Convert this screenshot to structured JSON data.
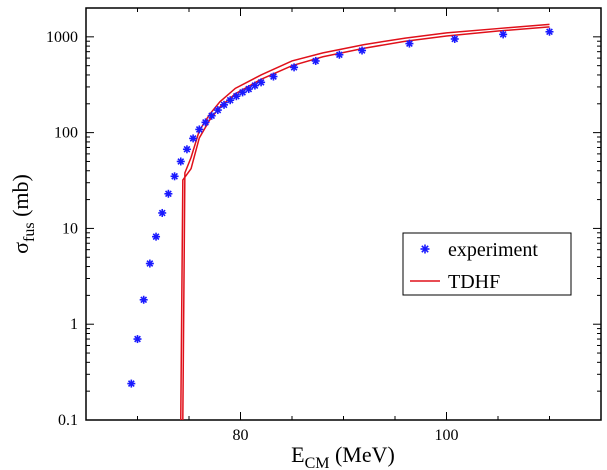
{
  "chart_data": {
    "type": "scatter",
    "title": "",
    "xlabel": {
      "main": "E",
      "sub": "CM",
      "rest": " (MeV)"
    },
    "ylabel": {
      "main": "σ",
      "sub": "fus",
      "rest": " (mb)"
    },
    "xlim": [
      65,
      115
    ],
    "ylim": [
      0.1,
      2000
    ],
    "yscale": "log",
    "x_ticks": [
      {
        "value": 80,
        "label": "80"
      },
      {
        "value": 100,
        "label": "100"
      }
    ],
    "y_ticks": [
      {
        "value": 0.1,
        "label": "0.1"
      },
      {
        "value": 1,
        "label": "1"
      },
      {
        "value": 10,
        "label": "10"
      },
      {
        "value": 100,
        "label": "100"
      },
      {
        "value": 1000,
        "label": "1000"
      }
    ],
    "legend_position": "center-right",
    "series": [
      {
        "name": "experiment",
        "kind": "markers",
        "marker": "asterisk",
        "color": "#1a1aff",
        "points": [
          [
            69.4,
            0.24
          ],
          [
            70.0,
            0.7
          ],
          [
            70.6,
            1.8
          ],
          [
            71.2,
            4.3
          ],
          [
            71.8,
            8.2
          ],
          [
            72.4,
            14.5
          ],
          [
            73.0,
            23
          ],
          [
            73.6,
            35
          ],
          [
            74.2,
            50
          ],
          [
            74.8,
            67
          ],
          [
            75.4,
            87
          ],
          [
            76.0,
            108
          ],
          [
            76.6,
            128
          ],
          [
            77.2,
            150
          ],
          [
            77.8,
            172
          ],
          [
            78.4,
            195
          ],
          [
            79.0,
            218
          ],
          [
            79.6,
            240
          ],
          [
            80.2,
            263
          ],
          [
            80.8,
            285
          ],
          [
            81.4,
            310
          ],
          [
            82.0,
            335
          ],
          [
            83.2,
            385
          ],
          [
            85.2,
            480
          ],
          [
            87.3,
            560
          ],
          [
            89.6,
            650
          ],
          [
            91.8,
            720
          ],
          [
            96.4,
            850
          ],
          [
            100.8,
            950
          ],
          [
            105.5,
            1060
          ],
          [
            110.0,
            1130
          ]
        ]
      },
      {
        "name": "TDHF",
        "kind": "band",
        "color": "#e0101a",
        "upper": [
          [
            74.4,
            0.1
          ],
          [
            74.6,
            38
          ],
          [
            75.2,
            55
          ],
          [
            76.0,
            105
          ],
          [
            77.0,
            155
          ],
          [
            78.0,
            210
          ],
          [
            79.5,
            290
          ],
          [
            82.0,
            400
          ],
          [
            85.0,
            560
          ],
          [
            88.0,
            680
          ],
          [
            92.0,
            830
          ],
          [
            96.0,
            970
          ],
          [
            100.0,
            1100
          ],
          [
            105.0,
            1220
          ],
          [
            110.0,
            1350
          ]
        ],
        "lower": [
          [
            74.2,
            0.1
          ],
          [
            74.4,
            32
          ],
          [
            75.2,
            42
          ],
          [
            76.0,
            88
          ],
          [
            77.0,
            135
          ],
          [
            78.0,
            185
          ],
          [
            79.5,
            255
          ],
          [
            82.0,
            360
          ],
          [
            85.0,
            500
          ],
          [
            88.0,
            620
          ],
          [
            92.0,
            760
          ],
          [
            96.0,
            900
          ],
          [
            100.0,
            1020
          ],
          [
            105.0,
            1150
          ],
          [
            110.0,
            1270
          ]
        ]
      }
    ]
  }
}
